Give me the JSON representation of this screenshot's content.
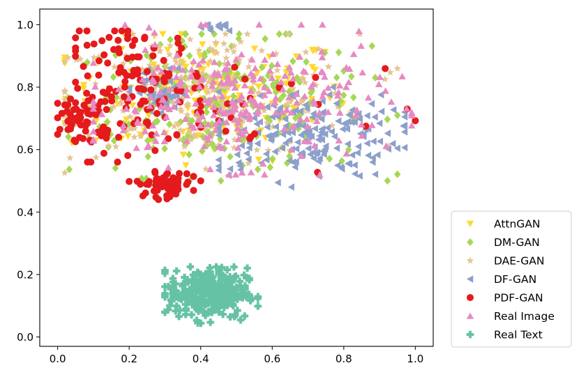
{
  "chart_data": {
    "type": "scatter",
    "title": "",
    "xlabel": "",
    "ylabel": "",
    "xlim": [
      -0.05,
      1.05
    ],
    "ylim": [
      -0.03,
      1.05
    ],
    "x_ticks": [
      "0.0",
      "0.2",
      "0.4",
      "0.6",
      "0.8",
      "1.0"
    ],
    "y_ticks": [
      "0.0",
      "0.2",
      "0.4",
      "0.6",
      "0.8",
      "1.0"
    ],
    "grid": false,
    "legend_position": "lower-right outside plot",
    "series": [
      {
        "name": "AttnGAN",
        "color": "#ffd92f",
        "marker": "triangle-down",
        "clusters": [
          {
            "cx": 0.42,
            "cy": 0.77,
            "sx": 0.2,
            "sy": 0.1,
            "xr": [
              0.02,
              0.82
            ],
            "yr": [
              0.55,
              0.97
            ],
            "n": 180
          }
        ]
      },
      {
        "name": "DM-GAN",
        "color": "#a6d854",
        "marker": "diamond",
        "clusters": [
          {
            "cx": 0.45,
            "cy": 0.74,
            "sx": 0.21,
            "sy": 0.11,
            "xr": [
              0.03,
              0.95
            ],
            "yr": [
              0.5,
              0.97
            ],
            "n": 240
          }
        ]
      },
      {
        "name": "DAE-GAN",
        "color": "#e5c494",
        "marker": "star",
        "clusters": [
          {
            "cx": 0.4,
            "cy": 0.78,
            "sx": 0.22,
            "sy": 0.1,
            "xr": [
              0.02,
              0.95
            ],
            "yr": [
              0.52,
              0.97
            ],
            "n": 220
          }
        ]
      },
      {
        "name": "DF-GAN",
        "color": "#8da0cb",
        "marker": "triangle-left",
        "clusters": [
          {
            "cx": 0.68,
            "cy": 0.65,
            "sx": 0.14,
            "sy": 0.07,
            "xr": [
              0.45,
              0.97
            ],
            "yr": [
              0.48,
              0.8
            ],
            "n": 190
          },
          {
            "cx": 0.28,
            "cy": 0.78,
            "sx": 0.04,
            "sy": 0.04,
            "xr": [
              0.2,
              0.36
            ],
            "yr": [
              0.68,
              0.86
            ],
            "n": 50
          },
          {
            "cx": 0.44,
            "cy": 0.99,
            "sx": 0.03,
            "sy": 0.01,
            "xr": [
              0.38,
              0.48
            ],
            "yr": [
              0.97,
              1.0
            ],
            "n": 12
          }
        ]
      },
      {
        "name": "PDF-GAN",
        "color": "#e41a1c",
        "marker": "circle",
        "clusters": [
          {
            "cx": 0.07,
            "cy": 0.7,
            "sx": 0.04,
            "sy": 0.04,
            "xr": [
              0.0,
              0.14
            ],
            "yr": [
              0.63,
              0.78
            ],
            "n": 55
          },
          {
            "cx": 0.3,
            "cy": 0.49,
            "sx": 0.04,
            "sy": 0.02,
            "xr": [
              0.2,
              0.38
            ],
            "yr": [
              0.44,
              0.53
            ],
            "n": 60
          },
          {
            "cx": 0.22,
            "cy": 0.8,
            "sx": 0.1,
            "sy": 0.1,
            "xr": [
              0.05,
              0.45
            ],
            "yr": [
              0.56,
              0.98
            ],
            "n": 130
          },
          {
            "cx": 0.6,
            "cy": 0.7,
            "sx": 0.2,
            "sy": 0.12,
            "xr": [
              0.4,
              1.0
            ],
            "yr": [
              0.5,
              0.9
            ],
            "n": 25
          }
        ]
      },
      {
        "name": "Real Image",
        "color": "#e78ac3",
        "marker": "triangle-up",
        "clusters": [
          {
            "cx": 0.5,
            "cy": 0.75,
            "sx": 0.21,
            "sy": 0.1,
            "xr": [
              0.1,
              0.99
            ],
            "yr": [
              0.52,
              1.0
            ],
            "n": 260
          }
        ]
      },
      {
        "name": "Real Text",
        "color": "#66c2a5",
        "marker": "plus",
        "clusters": [
          {
            "cx": 0.42,
            "cy": 0.14,
            "sx": 0.055,
            "sy": 0.04,
            "xr": [
              0.3,
              0.56
            ],
            "yr": [
              0.0,
              0.23
            ],
            "n": 330
          }
        ]
      }
    ]
  }
}
